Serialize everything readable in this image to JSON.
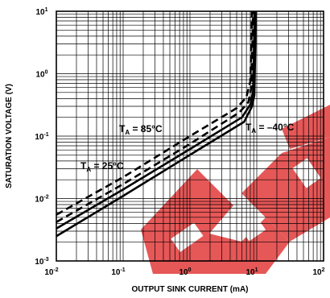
{
  "chart_data": {
    "type": "line",
    "title": "",
    "xlabel": "OUTPUT SINK CURRENT (mA)",
    "ylabel": "SATURATION VOLTAGE (V)",
    "xscale": "log",
    "yscale": "log",
    "xlim": [
      0.01,
      100
    ],
    "ylim": [
      0.001,
      10
    ],
    "grid": true,
    "x_ticks": [
      {
        "base": "10",
        "exp": "-2",
        "value": 0.01
      },
      {
        "base": "10",
        "exp": "-1",
        "value": 0.1
      },
      {
        "base": "10",
        "exp": "0",
        "value": 1
      },
      {
        "base": "10",
        "exp": "1",
        "value": 10
      },
      {
        "base": "10",
        "exp": "2",
        "value": 100
      }
    ],
    "y_ticks": [
      {
        "base": "10",
        "exp": "1",
        "value": 10
      },
      {
        "base": "10",
        "exp": "0",
        "value": 1
      },
      {
        "base": "10",
        "exp": "-1",
        "value": 0.1
      },
      {
        "base": "10",
        "exp": "-2",
        "value": 0.01
      },
      {
        "base": "10",
        "exp": "-3",
        "value": 0.001
      }
    ],
    "annotations": [
      {
        "main": "T",
        "sub": "A",
        "rest": " = 85°C"
      },
      {
        "main": "T",
        "sub": "A",
        "rest": " = 25°C"
      },
      {
        "main": "T",
        "sub": "A",
        "rest": " = –40°C"
      }
    ],
    "series": [
      {
        "dash": "dashed",
        "x": [
          0.01,
          0.1,
          1,
          5,
          7,
          8,
          8.3,
          8.5
        ],
        "y": [
          0.0055,
          0.022,
          0.1,
          0.28,
          0.42,
          0.75,
          3,
          10
        ]
      },
      {
        "dash": "dashed",
        "x": [
          0.01,
          0.1,
          1,
          5.5,
          7.5,
          8.3,
          8.6,
          8.8
        ],
        "y": [
          0.0042,
          0.017,
          0.075,
          0.24,
          0.35,
          0.6,
          3,
          10
        ]
      },
      {
        "dash": "solid",
        "x": [
          0.01,
          0.1,
          1,
          6,
          8,
          8.8,
          9.1,
          9.3
        ],
        "y": [
          0.0033,
          0.014,
          0.062,
          0.2,
          0.32,
          0.52,
          3,
          10
        ]
      },
      {
        "dash": "solid",
        "x": [
          0.01,
          0.1,
          1,
          6.5,
          8.5,
          9.2,
          9.5,
          9.7
        ],
        "y": [
          0.0025,
          0.011,
          0.05,
          0.17,
          0.3,
          0.45,
          3,
          10
        ]
      }
    ]
  }
}
